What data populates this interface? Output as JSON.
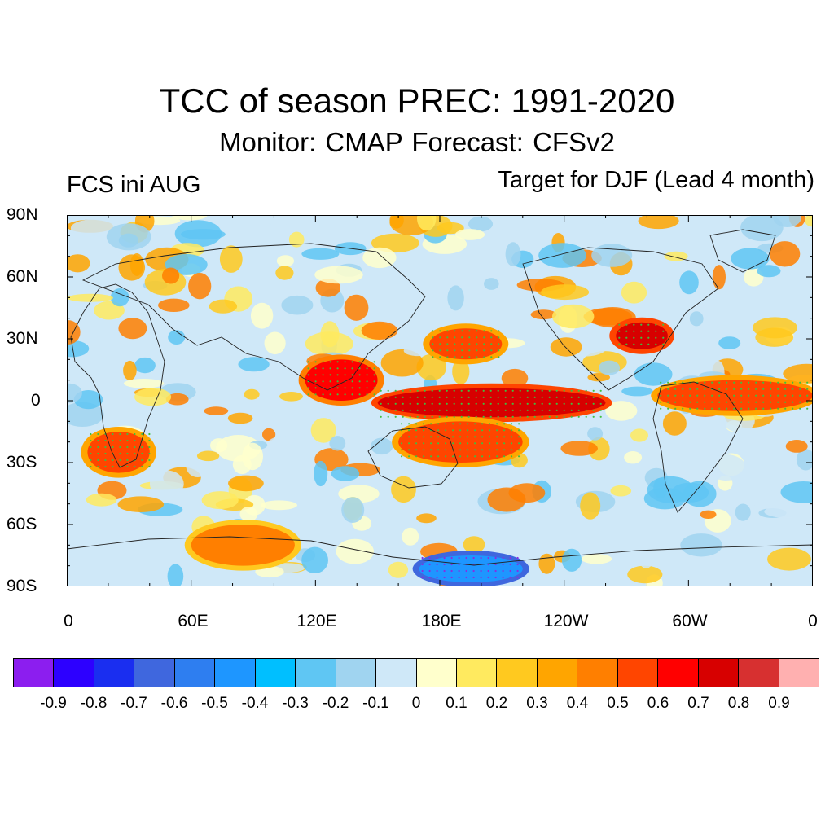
{
  "title": "TCC of season PREC: 1991-2020",
  "subtitle": "Monitor: CMAP   Forecast: CFSv2",
  "left_label": "FCS ini AUG",
  "right_label": "Target for DJF (Lead 4 month)",
  "lat_ticks": [
    "90N",
    "60N",
    "30N",
    "0",
    "30S",
    "60S",
    "90S"
  ],
  "lon_ticks": [
    "0",
    "60E",
    "120E",
    "180E",
    "120W",
    "60W",
    "0"
  ],
  "colorbar": {
    "colors": [
      "#8c1eef",
      "#2d00ff",
      "#1a2ef0",
      "#3f67de",
      "#2e7ef0",
      "#1e96ff",
      "#00bfff",
      "#5fc6f3",
      "#a0d4f0",
      "#cfe8f8",
      "#ffffcc",
      "#ffea5f",
      "#ffc91f",
      "#ffa500",
      "#ff7f00",
      "#ff4500",
      "#ff0000",
      "#d70000",
      "#d73030",
      "#ffb0b0"
    ],
    "labels": [
      "-0.9",
      "-0.8",
      "-0.7",
      "-0.6",
      "-0.5",
      "-0.4",
      "-0.3",
      "-0.2",
      "-0.1",
      "0",
      "0.1",
      "0.2",
      "0.3",
      "0.4",
      "0.5",
      "0.6",
      "0.7",
      "0.8",
      "0.9"
    ]
  },
  "map_data": {
    "lon_range": [
      0,
      360
    ],
    "lat_range": [
      -90,
      90
    ],
    "features": [
      {
        "name": "tropical-pacific-band",
        "lon": [
          150,
          260
        ],
        "lat": [
          -8,
          6
        ],
        "tcc": 0.75
      },
      {
        "name": "western-pacific",
        "lon": [
          115,
          150
        ],
        "lat": [
          0,
          20
        ],
        "tcc": 0.6
      },
      {
        "name": "south-pacific-convergence",
        "lon": [
          160,
          220
        ],
        "lat": [
          -30,
          -10
        ],
        "tcc": 0.5
      },
      {
        "name": "north-pacific",
        "lon": [
          175,
          210
        ],
        "lat": [
          20,
          35
        ],
        "tcc": 0.5
      },
      {
        "name": "southeast-us",
        "lon": [
          265,
          290
        ],
        "lat": [
          25,
          38
        ],
        "tcc": 0.7
      },
      {
        "name": "tropical-atlantic",
        "lon": [
          285,
          360
        ],
        "lat": [
          -5,
          10
        ],
        "tcc": 0.5
      },
      {
        "name": "southern-africa",
        "lon": [
          10,
          40
        ],
        "lat": [
          -35,
          -15
        ],
        "tcc": 0.5
      },
      {
        "name": "antarctic-indian",
        "lon": [
          60,
          110
        ],
        "lat": [
          -80,
          -60
        ],
        "tcc": 0.4
      },
      {
        "name": "antarctic-pacific",
        "lon": [
          170,
          220
        ],
        "lat": [
          -88,
          -75
        ],
        "tcc": -0.5
      }
    ]
  }
}
